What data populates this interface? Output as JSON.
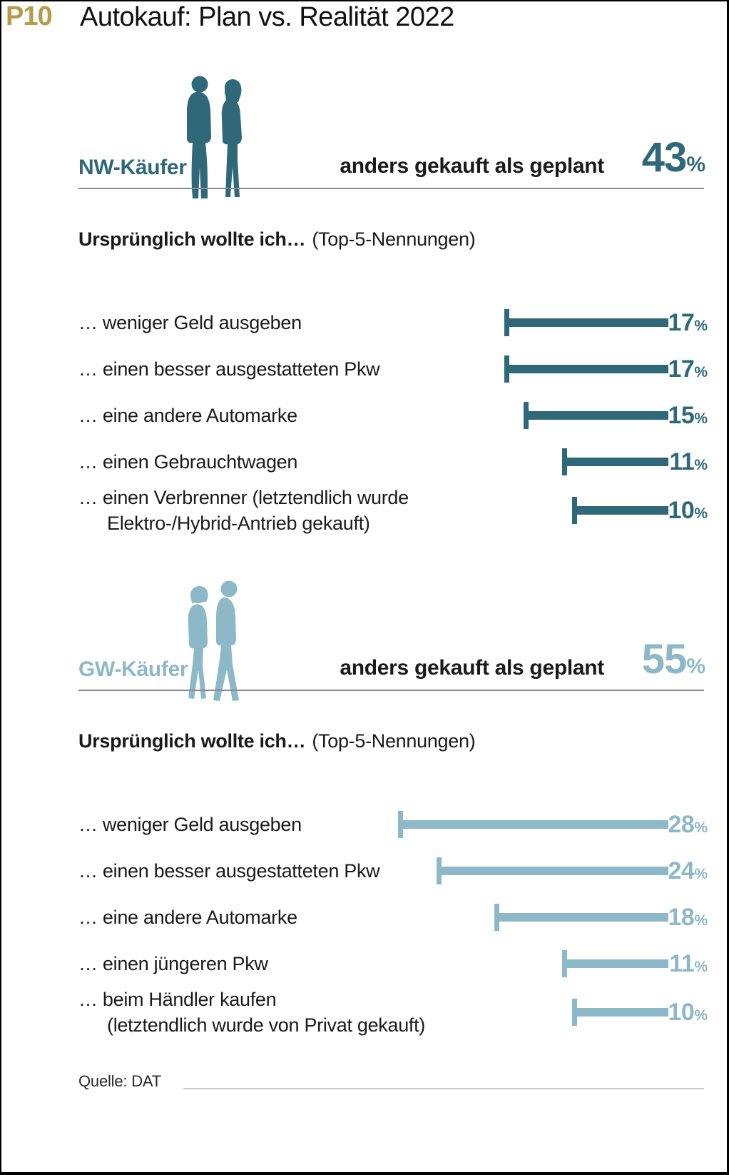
{
  "page": {
    "tag": "P10",
    "title": "Autokauf: Plan vs. Realität 2022",
    "unit": "%",
    "source": "Quelle: DAT"
  },
  "colors": {
    "nw_teal": "#2f6878",
    "gw_blue": "#8db8c8",
    "tag_gold": "#b59b4a",
    "headline_black": "#1a1a1a",
    "rule_gray": "#8c8c8c",
    "footer_rule_gray": "#c9c9c9"
  },
  "chart_data": [
    {
      "type": "bar",
      "group": "NW-Käufer",
      "group_icon": "two-people-standing-silhouette",
      "headline": "anders gekauft als geplant",
      "headline_value": 43,
      "unit": "%",
      "intro_bold": "Ursprünglich wollte ich…",
      "intro_note": "(Top-5-Nennungen)",
      "bar_color": "#2f6878",
      "orientation": "horizontal bars, right-edge aligned, growing leftward",
      "xlim": [
        0,
        30
      ],
      "legend": "none",
      "categories": [
        "… weniger Geld ausgeben",
        "… einen besser ausgestatteten Pkw",
        "… eine andere Automarke",
        "… einen Gebrauchtwagen",
        "… einen Verbrenner (letztendlich wurde Elektro-/Hybrid-Antrieb gekauft)"
      ],
      "values": [
        17,
        17,
        15,
        11,
        10
      ],
      "rows": [
        {
          "line1": "… weniger Geld ausgeben",
          "line2": "",
          "value": 17
        },
        {
          "line1": "… einen besser ausgestatteten Pkw",
          "line2": "",
          "value": 17
        },
        {
          "line1": "… eine andere Automarke",
          "line2": "",
          "value": 15
        },
        {
          "line1": "… einen Gebrauchtwagen",
          "line2": "",
          "value": 11
        },
        {
          "line1": "… einen Verbrenner (letztendlich wurde",
          "line2": "Elektro-/Hybrid-Antrieb gekauft)",
          "value": 10
        }
      ]
    },
    {
      "type": "bar",
      "group": "GW-Käufer",
      "group_icon": "walking-couple-silhouette",
      "headline": "anders gekauft als geplant",
      "headline_value": 55,
      "unit": "%",
      "intro_bold": "Ursprünglich wollte ich…",
      "intro_note": "(Top-5-Nennungen)",
      "bar_color": "#8db8c8",
      "orientation": "horizontal bars, right-edge aligned, growing leftward",
      "xlim": [
        0,
        30
      ],
      "legend": "none",
      "categories": [
        "… weniger Geld ausgeben",
        "… einen besser ausgestatteten Pkw",
        "… eine andere Automarke",
        "… einen jüngeren Pkw",
        "… beim Händler kaufen (letztendlich wurde von Privat gekauft)"
      ],
      "values": [
        28,
        24,
        18,
        11,
        10
      ],
      "rows": [
        {
          "line1": "… weniger Geld ausgeben",
          "line2": "",
          "value": 28
        },
        {
          "line1": "… einen besser ausgestatteten Pkw",
          "line2": "",
          "value": 24
        },
        {
          "line1": "… eine andere Automarke",
          "line2": "",
          "value": 18
        },
        {
          "line1": "… einen jüngeren Pkw",
          "line2": "",
          "value": 11
        },
        {
          "line1": "… beim Händler kaufen",
          "line2": "(letztendlich wurde von Privat gekauft)",
          "value": 10
        }
      ]
    }
  ]
}
